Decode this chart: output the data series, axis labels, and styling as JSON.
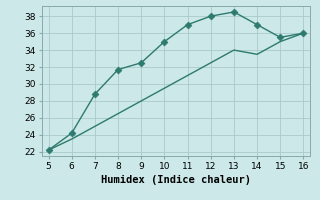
{
  "xlabel": "Humidex (Indice chaleur)",
  "background_color": "#cce8e8",
  "grid_color": "#aacaca",
  "line_color": "#2d7a6e",
  "markersize": 3.5,
  "linewidth": 1.0,
  "x_upper": [
    5,
    6,
    7,
    8,
    9,
    10,
    11,
    12,
    13,
    14,
    15,
    16
  ],
  "y_upper": [
    22.2,
    24.2,
    28.8,
    31.7,
    32.5,
    35.0,
    37.0,
    38.0,
    38.5,
    37.0,
    35.5,
    36.0
  ],
  "x_lower": [
    5,
    6,
    7,
    8,
    9,
    10,
    11,
    12,
    13,
    14,
    15,
    16
  ],
  "y_lower": [
    22.2,
    23.5,
    25.0,
    26.5,
    28.0,
    29.5,
    31.0,
    32.5,
    34.0,
    33.5,
    35.0,
    36.0
  ],
  "xlim": [
    4.7,
    16.3
  ],
  "ylim": [
    21.5,
    39.2
  ],
  "xticks": [
    5,
    6,
    7,
    8,
    9,
    10,
    11,
    12,
    13,
    14,
    15,
    16
  ],
  "yticks": [
    22,
    24,
    26,
    28,
    30,
    32,
    34,
    36,
    38
  ],
  "fontsize_label": 7.5,
  "fontsize_tick": 6.5
}
